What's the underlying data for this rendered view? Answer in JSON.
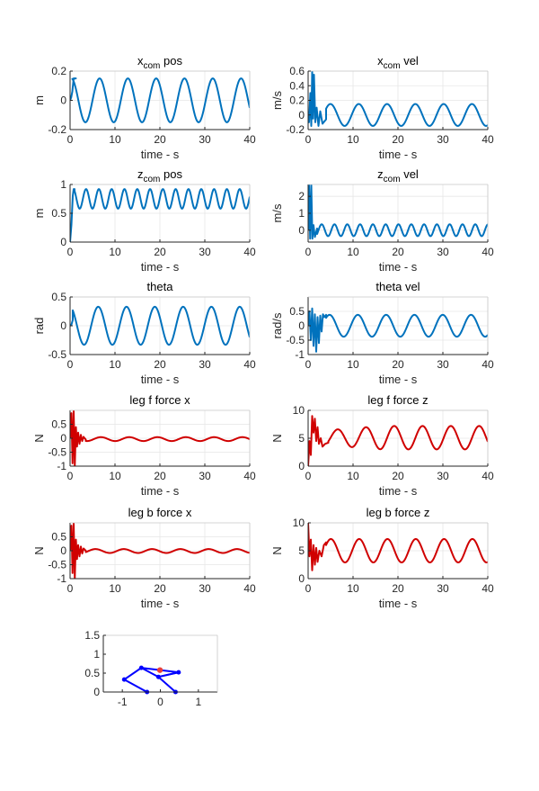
{
  "figure": {
    "background": "#ffffff",
    "axes_color": "#262626",
    "grid_color": "#e6e6e6"
  },
  "chart_data": [
    {
      "type": "line",
      "title": "x",
      "title_sub": "com",
      "title_rest": " pos",
      "xlabel": "time - s",
      "ylabel": "m",
      "xlim": [
        0,
        40
      ],
      "ylim": [
        -0.2,
        0.2
      ],
      "xticks": [
        0,
        10,
        20,
        30,
        40
      ],
      "yticks": [
        -0.2,
        0,
        0.2
      ],
      "grid": true,
      "color": "#0072BD",
      "signal": {
        "kind": "osc",
        "amp": 0.15,
        "period": 6.3,
        "phase": 1.3,
        "offset": 0,
        "start": 0,
        "startVal": 0,
        "t0": 0.5,
        "transient": [
          [
            0,
            0
          ],
          [
            0.25,
            0.02
          ],
          [
            0.5,
            0.06
          ],
          [
            0.8,
            0.15
          ],
          [
            1.3,
            0.15
          ]
        ]
      }
    },
    {
      "type": "line",
      "title": "x",
      "title_sub": "com",
      "title_rest": " vel",
      "xlabel": "time - s",
      "ylabel": "m/s",
      "xlim": [
        0,
        40
      ],
      "ylim": [
        -0.2,
        0.6
      ],
      "xticks": [
        0,
        10,
        20,
        30,
        40
      ],
      "yticks": [
        -0.2,
        0,
        0.2,
        0.4,
        0.6
      ],
      "grid": true,
      "color": "#0072BD",
      "signal": {
        "kind": "osc",
        "amp": 0.15,
        "period": 6.3,
        "phase": 2.9,
        "offset": 0,
        "t0": 4.0,
        "transient": [
          [
            0,
            0.05
          ],
          [
            0.2,
            -0.1
          ],
          [
            0.5,
            0.3
          ],
          [
            0.7,
            -0.15
          ],
          [
            0.9,
            0.6
          ],
          [
            1.1,
            -0.05
          ],
          [
            1.3,
            0.55
          ],
          [
            1.6,
            -0.1
          ],
          [
            1.9,
            0.1
          ],
          [
            2.3,
            -0.15
          ],
          [
            2.7,
            0.05
          ],
          [
            3.2,
            -0.12
          ],
          [
            4.0,
            -0.06
          ]
        ]
      }
    },
    {
      "type": "line",
      "title": "z",
      "title_sub": "com",
      "title_rest": " pos",
      "xlabel": "time - s",
      "ylabel": "m",
      "xlim": [
        0,
        40
      ],
      "ylim": [
        0,
        1
      ],
      "xticks": [
        0,
        10,
        20,
        30,
        40
      ],
      "yticks": [
        0,
        0.5,
        1
      ],
      "grid": true,
      "color": "#0072BD",
      "signal": {
        "kind": "osc",
        "amp": 0.17,
        "period": 2.85,
        "phase": 0.0,
        "offset": 0.75,
        "t0": 1.0,
        "transient": [
          [
            0,
            0.0
          ],
          [
            0.3,
            0.3
          ],
          [
            0.6,
            0.8
          ],
          [
            0.8,
            0.92
          ],
          [
            1.0,
            0.92
          ]
        ]
      }
    },
    {
      "type": "line",
      "title": "z",
      "title_sub": "com",
      "title_rest": " vel",
      "xlabel": "time - s",
      "ylabel": "m/s",
      "xlim": [
        0,
        40
      ],
      "ylim": [
        -0.7,
        2.7
      ],
      "xticks": [
        0,
        10,
        20,
        30,
        40
      ],
      "yticks": [
        0,
        1,
        2
      ],
      "grid": true,
      "color": "#0072BD",
      "signal": {
        "kind": "osc",
        "amp": 0.35,
        "period": 2.85,
        "phase": 1.2,
        "offset": 0.0,
        "t0": 2.0,
        "transient": [
          [
            0,
            0.0
          ],
          [
            0.2,
            2.7
          ],
          [
            0.45,
            -0.5
          ],
          [
            0.7,
            2.7
          ],
          [
            0.95,
            -0.5
          ],
          [
            1.2,
            0.3
          ],
          [
            1.5,
            -0.4
          ],
          [
            2.0,
            0.1
          ]
        ]
      }
    },
    {
      "type": "line",
      "title": "theta",
      "title_sub": "",
      "title_rest": "",
      "xlabel": "time - s",
      "ylabel": "rad",
      "xlim": [
        0,
        40
      ],
      "ylim": [
        -0.5,
        0.5
      ],
      "xticks": [
        0,
        10,
        20,
        30,
        40
      ],
      "yticks": [
        -0.5,
        0,
        0.5
      ],
      "grid": true,
      "color": "#0072BD",
      "signal": {
        "kind": "osc",
        "amp": 0.33,
        "period": 6.3,
        "phase": 1.6,
        "offset": 0,
        "t0": 0.6,
        "transient": [
          [
            0,
            0.0
          ],
          [
            0.3,
            0.02
          ],
          [
            0.6,
            0.1
          ]
        ]
      }
    },
    {
      "type": "line",
      "title": "theta vel",
      "title_sub": "",
      "title_rest": "",
      "xlabel": "time - s",
      "ylabel": "rad/s",
      "xlim": [
        0,
        40
      ],
      "ylim": [
        -1,
        1
      ],
      "xticks": [
        0,
        10,
        20,
        30,
        40
      ],
      "yticks": [
        -1,
        -0.5,
        0,
        0.5
      ],
      "grid": true,
      "color": "#0072BD",
      "signal": {
        "kind": "osc",
        "amp": 0.38,
        "period": 6.3,
        "phase": 3.1,
        "offset": 0,
        "t0": 4.0,
        "transient": [
          [
            0,
            0.0
          ],
          [
            0.3,
            0.5
          ],
          [
            0.6,
            -0.5
          ],
          [
            0.9,
            0.6
          ],
          [
            1.2,
            -0.7
          ],
          [
            1.5,
            0.4
          ],
          [
            1.8,
            -0.9
          ],
          [
            2.1,
            0.3
          ],
          [
            2.4,
            -0.6
          ],
          [
            2.7,
            0.35
          ],
          [
            3.0,
            -0.2
          ],
          [
            3.3,
            0.4
          ],
          [
            3.6,
            0.3
          ],
          [
            4.0,
            0.38
          ]
        ]
      }
    },
    {
      "type": "line",
      "title": "leg f force x",
      "title_sub": "",
      "title_rest": "",
      "xlabel": "time - s",
      "ylabel": "N",
      "xlim": [
        0,
        40
      ],
      "ylim": [
        -1,
        1
      ],
      "xticks": [
        0,
        10,
        20,
        30,
        40
      ],
      "yticks": [
        -1,
        -0.5,
        0,
        0.5
      ],
      "grid": true,
      "color": "#D00000",
      "signal": {
        "kind": "osc",
        "amp": 0.07,
        "period": 6.3,
        "phase": 1.0,
        "offset": -0.03,
        "t0": 3.5,
        "transient": [
          [
            0,
            0.0
          ],
          [
            0.3,
            0.9
          ],
          [
            0.55,
            -0.9
          ],
          [
            0.8,
            1.0
          ],
          [
            1.05,
            -1.0
          ],
          [
            1.3,
            0.4
          ],
          [
            1.55,
            -0.3
          ],
          [
            1.8,
            0.2
          ],
          [
            2.1,
            -0.2
          ],
          [
            2.4,
            0.12
          ],
          [
            2.7,
            -0.1
          ],
          [
            3.0,
            0.05
          ],
          [
            3.5,
            -0.05
          ]
        ]
      }
    },
    {
      "type": "line",
      "title": "leg f force z",
      "title_sub": "",
      "title_rest": "",
      "xlabel": "time - s",
      "ylabel": "N",
      "xlim": [
        0,
        40
      ],
      "ylim": [
        0,
        10
      ],
      "xticks": [
        0,
        10,
        20,
        30,
        40
      ],
      "yticks": [
        0,
        5,
        10
      ],
      "grid": true,
      "color": "#D00000",
      "signal": {
        "kind": "osc",
        "amp": 2.1,
        "period": 6.3,
        "phase": 1.3,
        "offset": 5.1,
        "t0": 4.5,
        "grow": true,
        "transient": [
          [
            0,
            0.0
          ],
          [
            0.3,
            4.5
          ],
          [
            0.6,
            2.0
          ],
          [
            0.9,
            9.0
          ],
          [
            1.2,
            6.0
          ],
          [
            1.5,
            8.5
          ],
          [
            1.8,
            4.5
          ],
          [
            2.1,
            7.0
          ],
          [
            2.4,
            4.0
          ],
          [
            2.8,
            5.0
          ],
          [
            3.2,
            3.5
          ],
          [
            3.8,
            4.0
          ],
          [
            4.5,
            4.2
          ]
        ]
      }
    },
    {
      "type": "line",
      "title": "leg b force x",
      "title_sub": "",
      "title_rest": "",
      "xlabel": "time - s",
      "ylabel": "N",
      "xlim": [
        0,
        40
      ],
      "ylim": [
        -1,
        1
      ],
      "xticks": [
        0,
        10,
        20,
        30,
        40
      ],
      "yticks": [
        -1,
        -0.5,
        0,
        0.5
      ],
      "grid": true,
      "color": "#D00000",
      "signal": {
        "kind": "osc",
        "amp": 0.07,
        "period": 6.3,
        "phase": 2.2,
        "offset": -0.01,
        "t0": 3.5,
        "transient": [
          [
            0,
            0.0
          ],
          [
            0.3,
            0.9
          ],
          [
            0.55,
            -0.8
          ],
          [
            0.8,
            1.0
          ],
          [
            1.05,
            -1.0
          ],
          [
            1.3,
            0.4
          ],
          [
            1.55,
            -0.3
          ],
          [
            1.8,
            0.2
          ],
          [
            2.1,
            -0.2
          ],
          [
            2.4,
            0.15
          ],
          [
            2.7,
            -0.1
          ],
          [
            3.0,
            0.08
          ],
          [
            3.5,
            0.0
          ]
        ]
      }
    },
    {
      "type": "line",
      "title": "leg b force z",
      "title_sub": "",
      "title_rest": "",
      "xlabel": "time - s",
      "ylabel": "N",
      "xlim": [
        0,
        40
      ],
      "ylim": [
        0,
        10
      ],
      "xticks": [
        0,
        10,
        20,
        30,
        40
      ],
      "yticks": [
        0,
        5,
        10
      ],
      "grid": true,
      "color": "#D00000",
      "signal": {
        "kind": "osc",
        "amp": 2.1,
        "period": 6.3,
        "phase": 2.8,
        "offset": 5.0,
        "t0": 4.0,
        "transient": [
          [
            0,
            10.0
          ],
          [
            0.3,
            4.0
          ],
          [
            0.6,
            7.0
          ],
          [
            0.9,
            1.5
          ],
          [
            1.2,
            6.0
          ],
          [
            1.5,
            2.5
          ],
          [
            1.8,
            5.5
          ],
          [
            2.1,
            3.0
          ],
          [
            2.5,
            5.0
          ],
          [
            3.0,
            4.0
          ],
          [
            3.5,
            6.0
          ],
          [
            4.0,
            6.5
          ]
        ]
      }
    },
    {
      "type": "diagram",
      "title": "",
      "xlabel": "",
      "ylabel": "",
      "xlim": [
        -1.5,
        1.5
      ],
      "ylim": [
        0,
        1.5
      ],
      "xticks": [
        -1,
        0,
        1
      ],
      "yticks": [
        0,
        0.5,
        1,
        1.5
      ],
      "xticklabels": [
        "-1",
        "0",
        "1"
      ],
      "yticklabels": [
        "0",
        "0.5",
        "1",
        "1.5"
      ],
      "grid": false,
      "color": "#0000FF",
      "com_color": "#E8403C",
      "joints": [
        [
          -0.5,
          0.64
        ],
        [
          0.48,
          0.52
        ],
        [
          -0.95,
          0.33
        ],
        [
          -0.05,
          0.4
        ],
        [
          -0.35,
          0.0
        ],
        [
          0.4,
          0.0
        ]
      ],
      "segments": [
        [
          0,
          1
        ],
        [
          0,
          2
        ],
        [
          1,
          3
        ],
        [
          2,
          4
        ],
        [
          3,
          5
        ],
        [
          0,
          3
        ],
        [
          1,
          3
        ]
      ],
      "com": [
        -0.01,
        0.58
      ]
    }
  ]
}
